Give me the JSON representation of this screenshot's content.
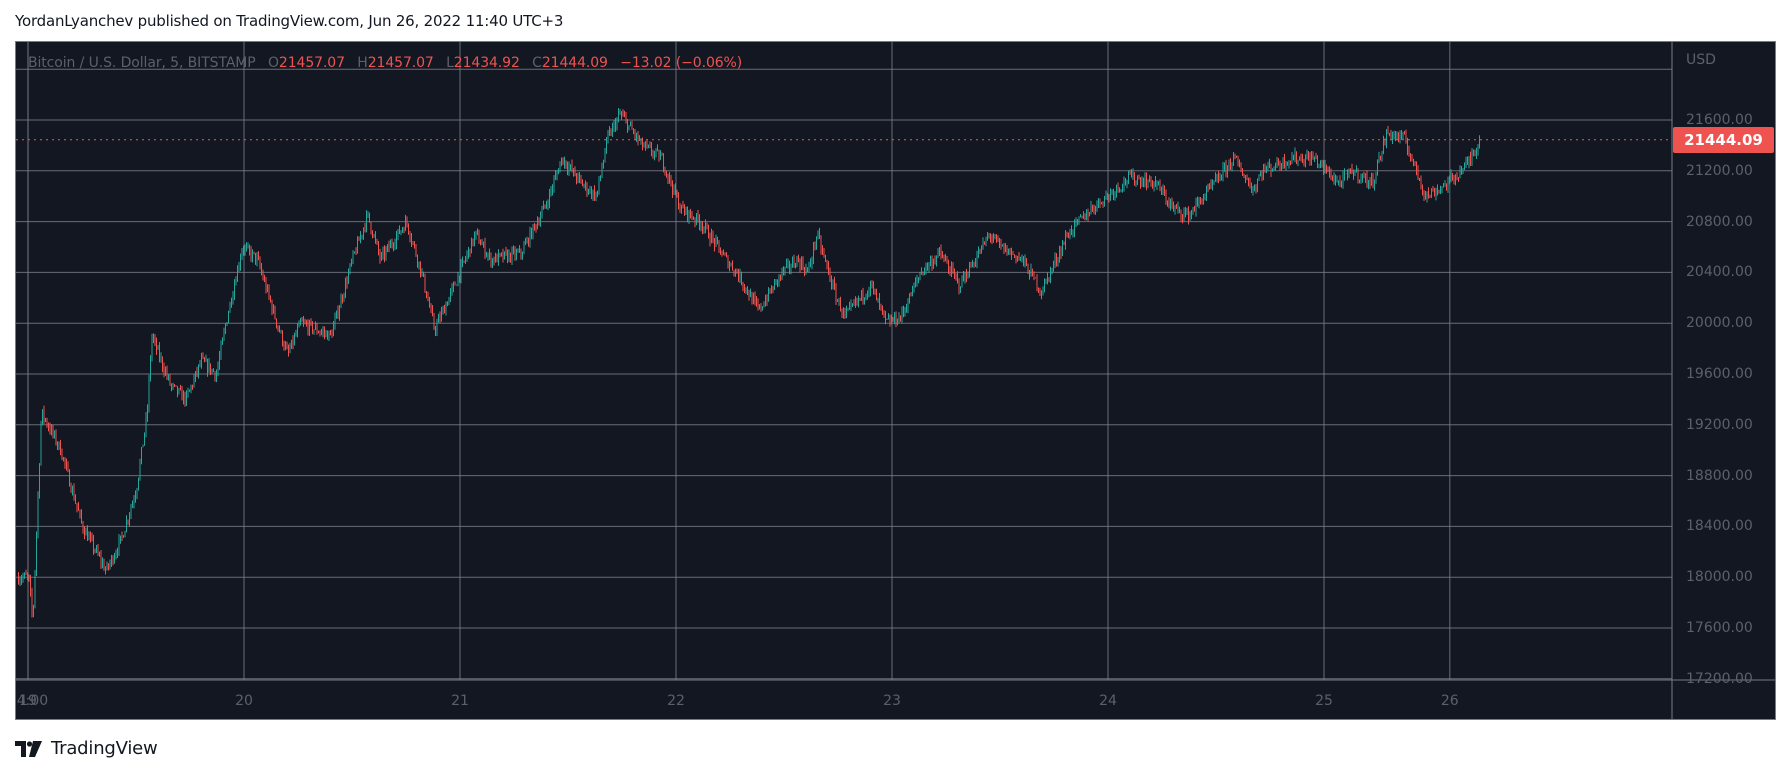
{
  "header": {
    "publish_line": "YordanLyanchev published on TradingView.com, Jun 26, 2022 11:40 UTC+3"
  },
  "legend": {
    "symbol": "Bitcoin / U.S. Dollar, 5, BITSTAMP",
    "open_label": "O",
    "open": "21457.07",
    "high_label": "H",
    "high": "21457.07",
    "low_label": "L",
    "low": "21434.92",
    "close_label": "C",
    "close": "21444.09",
    "change": "−13.02 (−0.06%)"
  },
  "price_axis": {
    "unit": "USD",
    "last_price": "21444.09",
    "ticks": [
      "21600.00",
      "21200.00",
      "20800.00",
      "20400.00",
      "20000.00",
      "19600.00",
      "19200.00",
      "18800.00",
      "18400.00",
      "18000.00",
      "17600.00",
      "17200.00"
    ]
  },
  "time_axis": {
    "ticks": [
      "19",
      "20",
      "21",
      "22",
      "23",
      "24",
      "25",
      "26",
      "14:00"
    ]
  },
  "footer": {
    "brand": "TradingView",
    "logo_icon": "tradingview-logo-icon"
  },
  "colors": {
    "background": "#131722",
    "grid": "#787b86",
    "up": "#26a69a",
    "down": "#ef5350",
    "axis_text": "#5d606b",
    "last_price_bg": "#ef5350"
  },
  "chart_data": {
    "type": "candlestick",
    "title": "Bitcoin / U.S. Dollar, 5, BITSTAMP",
    "interval": "5 min",
    "exchange": "BITSTAMP",
    "xlabel": "",
    "ylabel": "USD",
    "x_ticks": [
      "19",
      "20",
      "21",
      "22",
      "23",
      "24",
      "25",
      "26",
      "14:00"
    ],
    "y_ticks": [
      17200,
      17600,
      18000,
      18400,
      18800,
      19200,
      19600,
      20000,
      20400,
      20800,
      21200,
      21600
    ],
    "ylim": [
      17200,
      22000
    ],
    "grid": true,
    "last": {
      "open": 21457.07,
      "high": 21457.07,
      "low": 21434.92,
      "close": 21444.09,
      "change": -13.02,
      "change_pct": -0.06
    },
    "approx_close_path": {
      "description": "Approximate close prices read from the chart, x = days since Jun 19 00:00",
      "x": [
        0.0,
        0.02,
        0.06,
        0.15,
        0.25,
        0.36,
        0.43,
        0.5,
        0.55,
        0.57,
        0.66,
        0.73,
        0.8,
        0.87,
        0.92,
        0.99,
        1.06,
        1.15,
        1.2,
        1.26,
        1.4,
        1.5,
        1.57,
        1.63,
        1.75,
        1.82,
        1.88,
        1.96,
        2.07,
        2.14,
        2.28,
        2.4,
        2.47,
        2.56,
        2.63,
        2.68,
        2.74,
        2.84,
        2.93,
        3.02,
        3.11,
        3.23,
        3.28,
        3.38,
        3.49,
        3.56,
        3.61,
        3.65,
        3.74,
        3.78,
        3.9,
        3.97,
        4.04,
        4.13,
        4.22,
        4.31,
        4.4,
        4.45,
        4.5,
        4.6,
        4.69,
        4.81,
        4.92,
        5.1,
        5.22,
        5.3,
        5.37,
        5.49,
        5.58,
        5.67,
        5.71,
        5.85,
        5.95,
        6.07,
        6.13,
        6.22,
        6.29,
        6.37,
        6.47,
        6.57,
        6.66,
        6.72
      ],
      "close": [
        18000,
        17650,
        19300,
        19000,
        18400,
        18050,
        18300,
        18700,
        19300,
        19900,
        19500,
        19400,
        19700,
        19600,
        20050,
        20600,
        20500,
        20000,
        19750,
        20000,
        19900,
        20500,
        20850,
        20500,
        20800,
        20400,
        19950,
        20250,
        20700,
        20500,
        20550,
        20950,
        21300,
        21100,
        21000,
        21450,
        21650,
        21400,
        21300,
        20900,
        20800,
        20500,
        20400,
        20100,
        20400,
        20500,
        20400,
        20700,
        20200,
        20050,
        20300,
        20000,
        20050,
        20400,
        20550,
        20300,
        20550,
        20700,
        20600,
        20500,
        20250,
        20700,
        20900,
        21150,
        21100,
        20900,
        20850,
        21100,
        21300,
        21050,
        21200,
        21300,
        21300,
        21100,
        21200,
        21100,
        21500,
        21450,
        21000,
        21100,
        21250,
        21444
      ]
    }
  }
}
